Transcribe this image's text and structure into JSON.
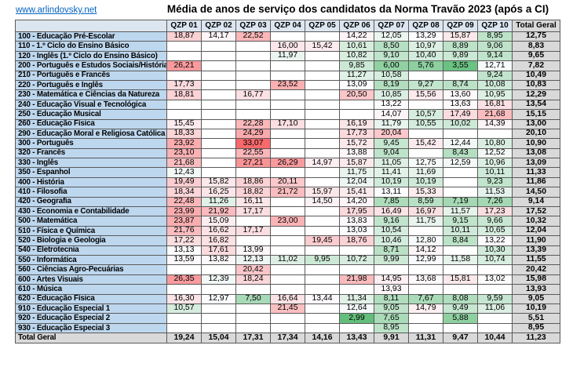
{
  "page": {
    "link": "www.arlindovsky.net",
    "title": "Média de anos de serviço dos candidatos da Norma Travão 2023 (após a CI)"
  },
  "colors": {
    "page_bg": "#FFFFFF",
    "header_bg": "#DCE6F1",
    "label_bg": "#BDD7EE",
    "total_bg": "#D9D9D9",
    "border": "#5A5A5A",
    "link": "#0563C1",
    "heat_min": "#63BE7B",
    "heat_mid": "#FCFCFF",
    "heat_max": "#F8696B"
  },
  "table": {
    "corner": "",
    "columns": [
      "QZP 01",
      "QZP 02",
      "QZP 03",
      "QZP 04",
      "QZP 05",
      "QZP 06",
      "QZP 07",
      "QZP 08",
      "QZP 09",
      "QZP 10"
    ],
    "total_column": "Total Geral",
    "rows": [
      {
        "label": "100 - Educação Pré-Escolar",
        "values": [
          18.87,
          14.17,
          22.52,
          null,
          null,
          14.22,
          12.05,
          13.29,
          15.87,
          8.95
        ],
        "total": 12.75
      },
      {
        "label": "110 - 1.º Ciclo do Ensino Básico",
        "values": [
          null,
          null,
          null,
          16.0,
          15.42,
          10.61,
          8.5,
          10.97,
          8.89,
          9.06
        ],
        "total": 8.83
      },
      {
        "label": "120 - Inglês (1.º Ciclo do Ensino Básico)",
        "values": [
          null,
          null,
          null,
          11.97,
          null,
          10.82,
          9.1,
          10.4,
          9.89,
          9.14
        ],
        "total": 9.65
      },
      {
        "label": "200 - Português e Estudos Sociais/História",
        "values": [
          26.21,
          null,
          null,
          null,
          null,
          9.85,
          6.0,
          5.76,
          3.55,
          12.71
        ],
        "total": 7.82
      },
      {
        "label": "210 - Português e Francês",
        "values": [
          null,
          null,
          null,
          null,
          null,
          11.27,
          10.58,
          null,
          null,
          9.24
        ],
        "total": 10.49
      },
      {
        "label": "220 - Português e Inglês",
        "values": [
          17.73,
          null,
          null,
          23.52,
          null,
          13.09,
          8.19,
          9.27,
          8.74,
          10.08
        ],
        "total": 10.83
      },
      {
        "label": "230 - Matemática e Ciências da Natureza",
        "values": [
          18.81,
          null,
          16.77,
          null,
          null,
          20.5,
          10.85,
          15.56,
          13.6,
          10.95
        ],
        "total": 12.29
      },
      {
        "label": "240 - Educação Visual e Tecnológica",
        "values": [
          null,
          null,
          null,
          null,
          null,
          null,
          13.22,
          null,
          13.63,
          16.81
        ],
        "total": 13.54
      },
      {
        "label": "250 - Educação Musical",
        "values": [
          null,
          null,
          null,
          null,
          null,
          null,
          14.07,
          10.57,
          17.49,
          21.68
        ],
        "total": 15.15
      },
      {
        "label": "260 - Educação Física",
        "values": [
          15.45,
          null,
          22.28,
          17.1,
          null,
          16.19,
          11.79,
          10.55,
          10.02,
          14.39
        ],
        "total": 13.0
      },
      {
        "label": "290 - Educação Moral e Religiosa Católica",
        "values": [
          18.33,
          null,
          24.29,
          null,
          null,
          17.73,
          20.04,
          null,
          null,
          null
        ],
        "total": 20.1
      },
      {
        "label": "300 - Português",
        "values": [
          23.92,
          null,
          33.07,
          null,
          null,
          15.72,
          9.45,
          15.42,
          12.44,
          10.8
        ],
        "total": 10.9
      },
      {
        "label": "320 - Francês",
        "values": [
          23.1,
          null,
          22.55,
          null,
          null,
          13.88,
          9.04,
          null,
          8.43,
          12.52
        ],
        "total": 13.08
      },
      {
        "label": "330 - Inglês",
        "values": [
          21.68,
          null,
          27.21,
          26.29,
          14.97,
          15.87,
          11.05,
          12.75,
          12.59,
          10.96
        ],
        "total": 13.09
      },
      {
        "label": "350 - Espanhol",
        "values": [
          12.43,
          null,
          null,
          null,
          null,
          11.75,
          11.41,
          11.69,
          null,
          10.11
        ],
        "total": 11.33
      },
      {
        "label": "400 - História",
        "values": [
          19.49,
          15.82,
          18.86,
          20.11,
          null,
          12.04,
          10.19,
          10.19,
          null,
          9.23
        ],
        "total": 11.86
      },
      {
        "label": "410 - Filosofia",
        "values": [
          18.34,
          16.25,
          18.82,
          21.72,
          15.97,
          15.41,
          13.11,
          15.33,
          null,
          11.53
        ],
        "total": 14.5
      },
      {
        "label": "420 - Geografia",
        "values": [
          22.48,
          11.26,
          16.11,
          null,
          14.5,
          14.2,
          7.85,
          8.59,
          7.19,
          7.26
        ],
        "total": 9.14
      },
      {
        "label": "430 - Economia e Contabilidade",
        "values": [
          23.99,
          21.92,
          17.17,
          null,
          null,
          17.95,
          16.49,
          16.97,
          11.57,
          17.23
        ],
        "total": 17.52
      },
      {
        "label": "500 - Matemática",
        "values": [
          23.87,
          15.09,
          null,
          23.0,
          null,
          13.83,
          9.16,
          11.75,
          9.15,
          9.66
        ],
        "total": 10.32
      },
      {
        "label": "510 - Física e Química",
        "values": [
          21.76,
          16.62,
          17.17,
          null,
          null,
          13.03,
          10.54,
          null,
          10.11,
          10.65
        ],
        "total": 12.04
      },
      {
        "label": "520 - Biologia e Geologia",
        "values": [
          17.22,
          16.82,
          null,
          null,
          19.45,
          18.76,
          10.46,
          12.8,
          8.84,
          13.22
        ],
        "total": 11.9
      },
      {
        "label": "540 - Eletrotecnia",
        "values": [
          13.13,
          17.61,
          13.99,
          null,
          null,
          null,
          8.71,
          14.12,
          null,
          10.3
        ],
        "total": 13.39
      },
      {
        "label": "550 - Informática",
        "values": [
          13.59,
          13.82,
          12.13,
          11.02,
          9.95,
          10.72,
          9.99,
          12.99,
          11.58,
          10.74
        ],
        "total": 11.55
      },
      {
        "label": "560 - Ciências Agro-Pecuárias",
        "values": [
          null,
          null,
          20.42,
          null,
          null,
          null,
          null,
          null,
          null,
          null
        ],
        "total": 20.42
      },
      {
        "label": "600 - Artes Visuais",
        "values": [
          26.35,
          12.39,
          18.24,
          null,
          null,
          21.98,
          14.95,
          13.68,
          15.81,
          13.02
        ],
        "total": 15.98
      },
      {
        "label": "610 - Música",
        "values": [
          null,
          null,
          null,
          null,
          null,
          null,
          13.93,
          null,
          null,
          null
        ],
        "total": 13.93
      },
      {
        "label": "620 - Educação Física",
        "values": [
          16.3,
          12.97,
          7.5,
          16.64,
          13.44,
          11.34,
          8.11,
          7.67,
          8.08,
          9.59
        ],
        "total": 9.05
      },
      {
        "label": "910 - Educação Especial 1",
        "values": [
          10.57,
          null,
          null,
          21.45,
          null,
          12.64,
          9.05,
          14.79,
          9.49,
          11.06
        ],
        "total": 10.19
      },
      {
        "label": "920 - Educação Especial 2",
        "values": [
          null,
          null,
          null,
          null,
          null,
          2.99,
          7.65,
          null,
          5.88,
          null
        ],
        "total": 5.51
      },
      {
        "label": "930 - Educação Especial 3",
        "values": [
          null,
          null,
          null,
          null,
          null,
          null,
          8.95,
          null,
          null,
          null
        ],
        "total": 8.95
      }
    ],
    "total_row": {
      "label": "Total Geral",
      "values": [
        19.24,
        15.04,
        17.31,
        17.34,
        14.16,
        13.43,
        9.91,
        11.31,
        9.47,
        10.44
      ],
      "total": 11.23
    }
  }
}
